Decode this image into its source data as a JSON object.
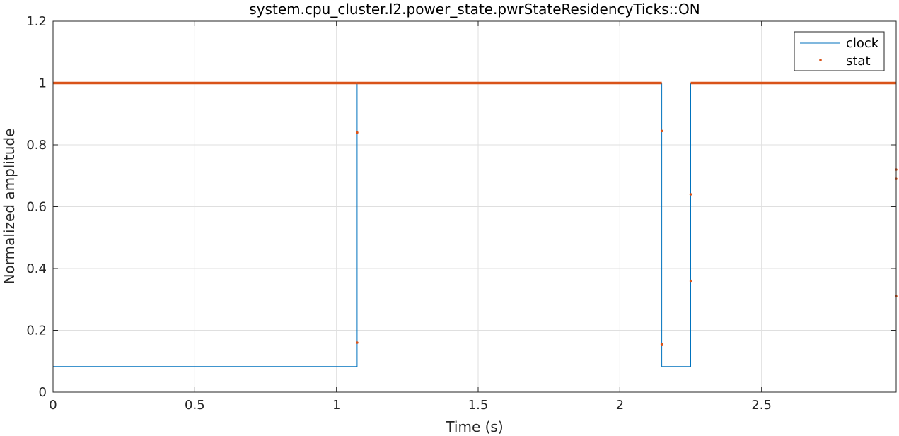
{
  "chart_data": {
    "type": "line",
    "title": "system.cpu_cluster.l2.power_state.pwrStateResidencyTicks::ON",
    "xlabel": "Time (s)",
    "ylabel": "Normalized amplitude",
    "xlim": [
      0,
      2.975
    ],
    "ylim": [
      0,
      1.2
    ],
    "xticks": [
      0,
      0.5,
      1,
      1.5,
      2,
      2.5
    ],
    "xtick_labels": [
      "0",
      "0.5",
      "1",
      "1.5",
      "2",
      "2.5"
    ],
    "yticks": [
      0,
      0.2,
      0.4,
      0.6,
      0.8,
      1,
      1.2
    ],
    "ytick_labels": [
      "0",
      "0.2",
      "0.4",
      "0.6",
      "0.8",
      "1",
      "1.2"
    ],
    "grid": true,
    "legend_position": "top-right",
    "series": [
      {
        "name": "clock",
        "style": "step-line",
        "color": "#0072BD",
        "x": [
          0,
          1.073,
          1.073,
          2.148,
          2.148,
          2.25,
          2.25,
          2.975,
          2.975
        ],
        "y": [
          0.083,
          0.083,
          1,
          1,
          0.083,
          0.083,
          1,
          1,
          0.083
        ]
      },
      {
        "name": "stat",
        "style": "dots",
        "color": "#D95319",
        "dense_segments": [
          [
            0,
            1.073,
            1
          ],
          [
            1.073,
            2.148,
            1
          ],
          [
            2.25,
            2.975,
            1
          ]
        ],
        "x": [
          1.073,
          1.073,
          2.148,
          2.148,
          2.25,
          2.25,
          2.975,
          2.975,
          2.975
        ],
        "y": [
          0.16,
          0.84,
          0.155,
          0.845,
          0.36,
          0.64,
          0.31,
          0.69,
          0.72
        ]
      }
    ]
  }
}
